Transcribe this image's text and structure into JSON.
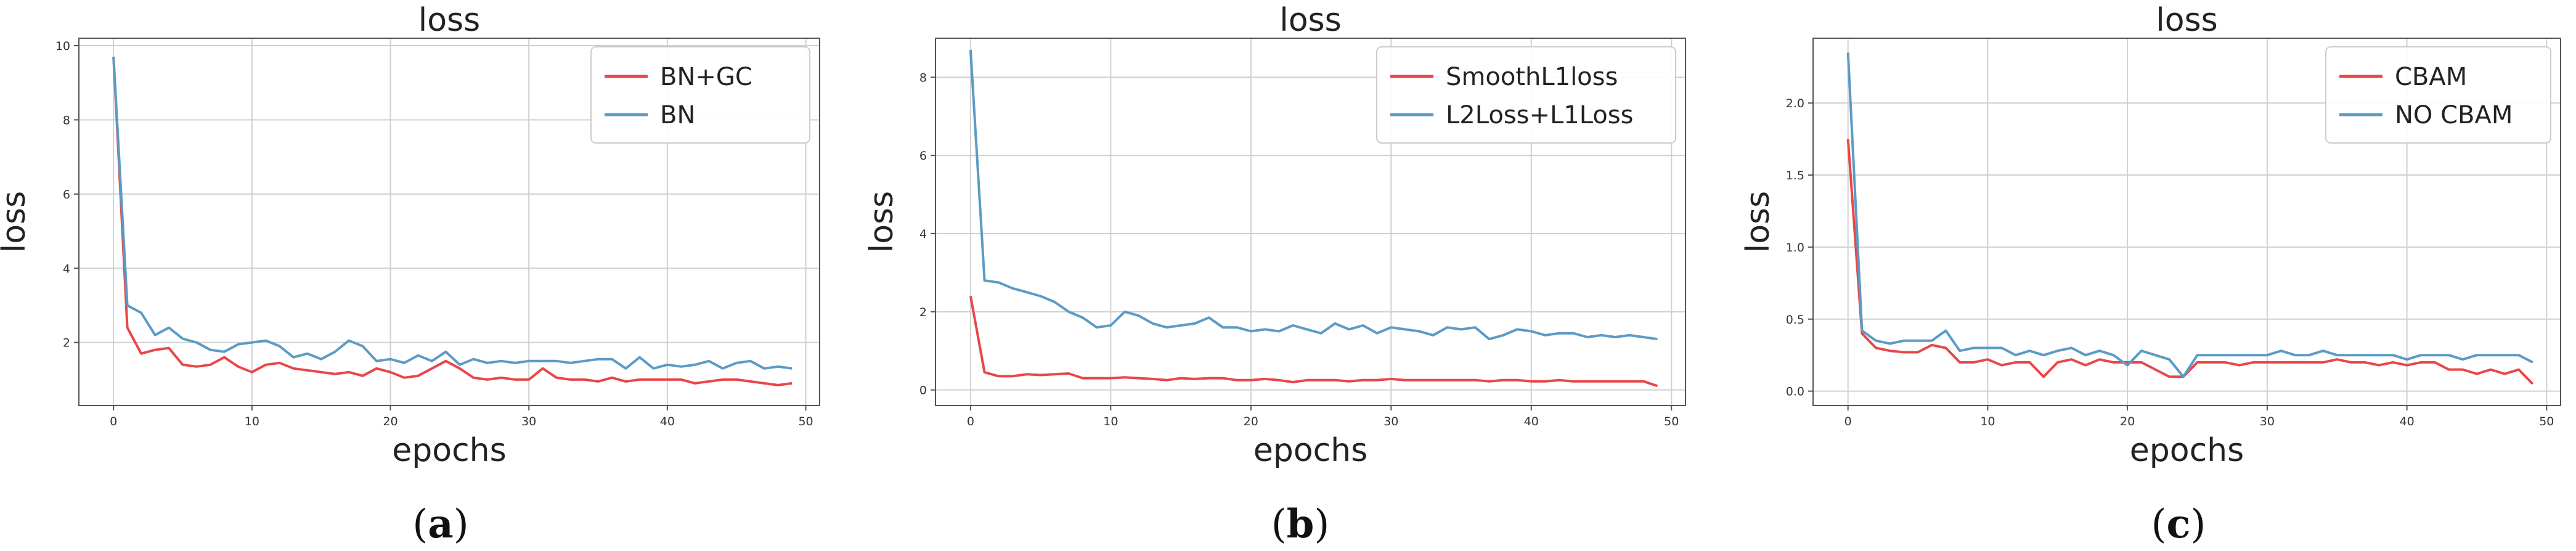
{
  "colors": {
    "red": "#e8474a",
    "blue": "#5b9bc4",
    "grid": "#d0d0d0",
    "frame": "#555555"
  },
  "chart_data": [
    {
      "type": "line",
      "title": "loss",
      "xlabel": "epochs",
      "ylabel": "loss",
      "xlim": [
        -2.5,
        51
      ],
      "ylim": [
        0.3,
        10.2
      ],
      "xticks": [
        0,
        10,
        20,
        30,
        40,
        50
      ],
      "yticks": [
        2,
        4,
        6,
        8,
        10
      ],
      "grid": true,
      "legend_position": "top-right",
      "caption": {
        "open": "(",
        "letter": "a",
        "close": ")"
      },
      "series": [
        {
          "name": "BN+GC",
          "color": "#e8474a",
          "x": [
            0,
            1,
            2,
            3,
            4,
            5,
            6,
            7,
            8,
            9,
            10,
            11,
            12,
            13,
            14,
            15,
            16,
            17,
            18,
            19,
            20,
            21,
            22,
            23,
            24,
            25,
            26,
            27,
            28,
            29,
            30,
            31,
            32,
            33,
            34,
            35,
            36,
            37,
            38,
            39,
            40,
            41,
            42,
            43,
            44,
            45,
            46,
            47,
            48,
            49
          ],
          "y": [
            9.7,
            2.4,
            1.7,
            1.8,
            1.85,
            1.4,
            1.35,
            1.4,
            1.6,
            1.35,
            1.2,
            1.4,
            1.45,
            1.3,
            1.25,
            1.2,
            1.15,
            1.2,
            1.1,
            1.3,
            1.2,
            1.05,
            1.1,
            1.3,
            1.5,
            1.3,
            1.05,
            1.0,
            1.05,
            1.0,
            1.0,
            1.3,
            1.05,
            1.0,
            1.0,
            0.95,
            1.05,
            0.95,
            1.0,
            1.0,
            1.0,
            1.0,
            0.9,
            0.95,
            1.0,
            1.0,
            0.95,
            0.9,
            0.85,
            0.9
          ]
        },
        {
          "name": "BN",
          "color": "#5b9bc4",
          "x": [
            0,
            1,
            2,
            3,
            4,
            5,
            6,
            7,
            8,
            9,
            10,
            11,
            12,
            13,
            14,
            15,
            16,
            17,
            18,
            19,
            20,
            21,
            22,
            23,
            24,
            25,
            26,
            27,
            28,
            29,
            30,
            31,
            32,
            33,
            34,
            35,
            36,
            37,
            38,
            39,
            40,
            41,
            42,
            43,
            44,
            45,
            46,
            47,
            48,
            49
          ],
          "y": [
            9.7,
            3.0,
            2.8,
            2.2,
            2.4,
            2.1,
            2.0,
            1.8,
            1.75,
            1.95,
            2.0,
            2.05,
            1.9,
            1.6,
            1.7,
            1.55,
            1.75,
            2.05,
            1.9,
            1.5,
            1.55,
            1.45,
            1.65,
            1.5,
            1.75,
            1.4,
            1.55,
            1.45,
            1.5,
            1.45,
            1.5,
            1.5,
            1.5,
            1.45,
            1.5,
            1.55,
            1.55,
            1.3,
            1.6,
            1.3,
            1.4,
            1.35,
            1.4,
            1.5,
            1.3,
            1.45,
            1.5,
            1.3,
            1.35,
            1.3
          ]
        }
      ]
    },
    {
      "type": "line",
      "title": "loss",
      "xlabel": "epochs",
      "ylabel": "loss",
      "xlim": [
        -2.5,
        51
      ],
      "ylim": [
        -0.4,
        9.0
      ],
      "xticks": [
        0,
        10,
        20,
        30,
        40,
        50
      ],
      "yticks": [
        0,
        2,
        4,
        6,
        8
      ],
      "grid": true,
      "legend_position": "top-right",
      "caption": {
        "open": "(",
        "letter": "b",
        "close": ")"
      },
      "series": [
        {
          "name": "SmoothL1loss",
          "color": "#e8474a",
          "x": [
            0,
            1,
            2,
            3,
            4,
            5,
            6,
            7,
            8,
            9,
            10,
            11,
            12,
            13,
            14,
            15,
            16,
            17,
            18,
            19,
            20,
            21,
            22,
            23,
            24,
            25,
            26,
            27,
            28,
            29,
            30,
            31,
            32,
            33,
            34,
            35,
            36,
            37,
            38,
            39,
            40,
            41,
            42,
            43,
            44,
            45,
            46,
            47,
            48,
            49
          ],
          "y": [
            2.4,
            0.45,
            0.35,
            0.35,
            0.4,
            0.38,
            0.4,
            0.42,
            0.3,
            0.3,
            0.3,
            0.32,
            0.3,
            0.28,
            0.25,
            0.3,
            0.28,
            0.3,
            0.3,
            0.25,
            0.25,
            0.28,
            0.25,
            0.2,
            0.25,
            0.25,
            0.25,
            0.22,
            0.25,
            0.25,
            0.28,
            0.25,
            0.25,
            0.25,
            0.25,
            0.25,
            0.25,
            0.22,
            0.25,
            0.25,
            0.22,
            0.22,
            0.25,
            0.22,
            0.22,
            0.22,
            0.22,
            0.22,
            0.22,
            0.1
          ]
        },
        {
          "name": "L2Loss+L1Loss",
          "color": "#5b9bc4",
          "x": [
            0,
            1,
            2,
            3,
            4,
            5,
            6,
            7,
            8,
            9,
            10,
            11,
            12,
            13,
            14,
            15,
            16,
            17,
            18,
            19,
            20,
            21,
            22,
            23,
            24,
            25,
            26,
            27,
            28,
            29,
            30,
            31,
            32,
            33,
            34,
            35,
            36,
            37,
            38,
            39,
            40,
            41,
            42,
            43,
            44,
            45,
            46,
            47,
            48,
            49
          ],
          "y": [
            8.7,
            2.8,
            2.75,
            2.6,
            2.5,
            2.4,
            2.25,
            2.0,
            1.85,
            1.6,
            1.65,
            2.0,
            1.9,
            1.7,
            1.6,
            1.65,
            1.7,
            1.85,
            1.6,
            1.6,
            1.5,
            1.55,
            1.5,
            1.65,
            1.55,
            1.45,
            1.7,
            1.55,
            1.65,
            1.45,
            1.6,
            1.55,
            1.5,
            1.4,
            1.6,
            1.55,
            1.6,
            1.3,
            1.4,
            1.55,
            1.5,
            1.4,
            1.45,
            1.45,
            1.35,
            1.4,
            1.35,
            1.4,
            1.35,
            1.3
          ]
        }
      ]
    },
    {
      "type": "line",
      "title": "loss",
      "xlabel": "epochs",
      "ylabel": "loss",
      "xlim": [
        -2.5,
        51
      ],
      "ylim": [
        -0.1,
        2.45
      ],
      "xticks": [
        0,
        10,
        20,
        30,
        40,
        50
      ],
      "yticks": [
        0.0,
        0.5,
        1.0,
        1.5,
        2.0
      ],
      "grid": true,
      "legend_position": "top-right",
      "caption": {
        "open": "(",
        "letter": "c",
        "close": ")"
      },
      "series": [
        {
          "name": "CBAM",
          "color": "#e8474a",
          "x": [
            0,
            1,
            2,
            3,
            4,
            5,
            6,
            7,
            8,
            9,
            10,
            11,
            12,
            13,
            14,
            15,
            16,
            17,
            18,
            19,
            20,
            21,
            22,
            23,
            24,
            25,
            26,
            27,
            28,
            29,
            30,
            31,
            32,
            33,
            34,
            35,
            36,
            37,
            38,
            39,
            40,
            41,
            42,
            43,
            44,
            45,
            46,
            47,
            48,
            49
          ],
          "y": [
            1.75,
            0.4,
            0.3,
            0.28,
            0.27,
            0.27,
            0.32,
            0.3,
            0.2,
            0.2,
            0.22,
            0.18,
            0.2,
            0.2,
            0.1,
            0.2,
            0.22,
            0.18,
            0.22,
            0.2,
            0.2,
            0.2,
            0.15,
            0.1,
            0.1,
            0.2,
            0.2,
            0.2,
            0.18,
            0.2,
            0.2,
            0.2,
            0.2,
            0.2,
            0.2,
            0.22,
            0.2,
            0.2,
            0.18,
            0.2,
            0.18,
            0.2,
            0.2,
            0.15,
            0.15,
            0.12,
            0.15,
            0.12,
            0.15,
            0.05
          ]
        },
        {
          "name": "NO CBAM",
          "color": "#5b9bc4",
          "x": [
            0,
            1,
            2,
            3,
            4,
            5,
            6,
            7,
            8,
            9,
            10,
            11,
            12,
            13,
            14,
            15,
            16,
            17,
            18,
            19,
            20,
            21,
            22,
            23,
            24,
            25,
            26,
            27,
            28,
            29,
            30,
            31,
            32,
            33,
            34,
            35,
            36,
            37,
            38,
            39,
            40,
            41,
            42,
            43,
            44,
            45,
            46,
            47,
            48,
            49
          ],
          "y": [
            2.35,
            0.42,
            0.35,
            0.33,
            0.35,
            0.35,
            0.35,
            0.42,
            0.28,
            0.3,
            0.3,
            0.3,
            0.25,
            0.28,
            0.25,
            0.28,
            0.3,
            0.25,
            0.28,
            0.25,
            0.18,
            0.28,
            0.25,
            0.22,
            0.1,
            0.25,
            0.25,
            0.25,
            0.25,
            0.25,
            0.25,
            0.28,
            0.25,
            0.25,
            0.28,
            0.25,
            0.25,
            0.25,
            0.25,
            0.25,
            0.22,
            0.25,
            0.25,
            0.25,
            0.22,
            0.25,
            0.25,
            0.25,
            0.25,
            0.2
          ]
        }
      ]
    }
  ]
}
